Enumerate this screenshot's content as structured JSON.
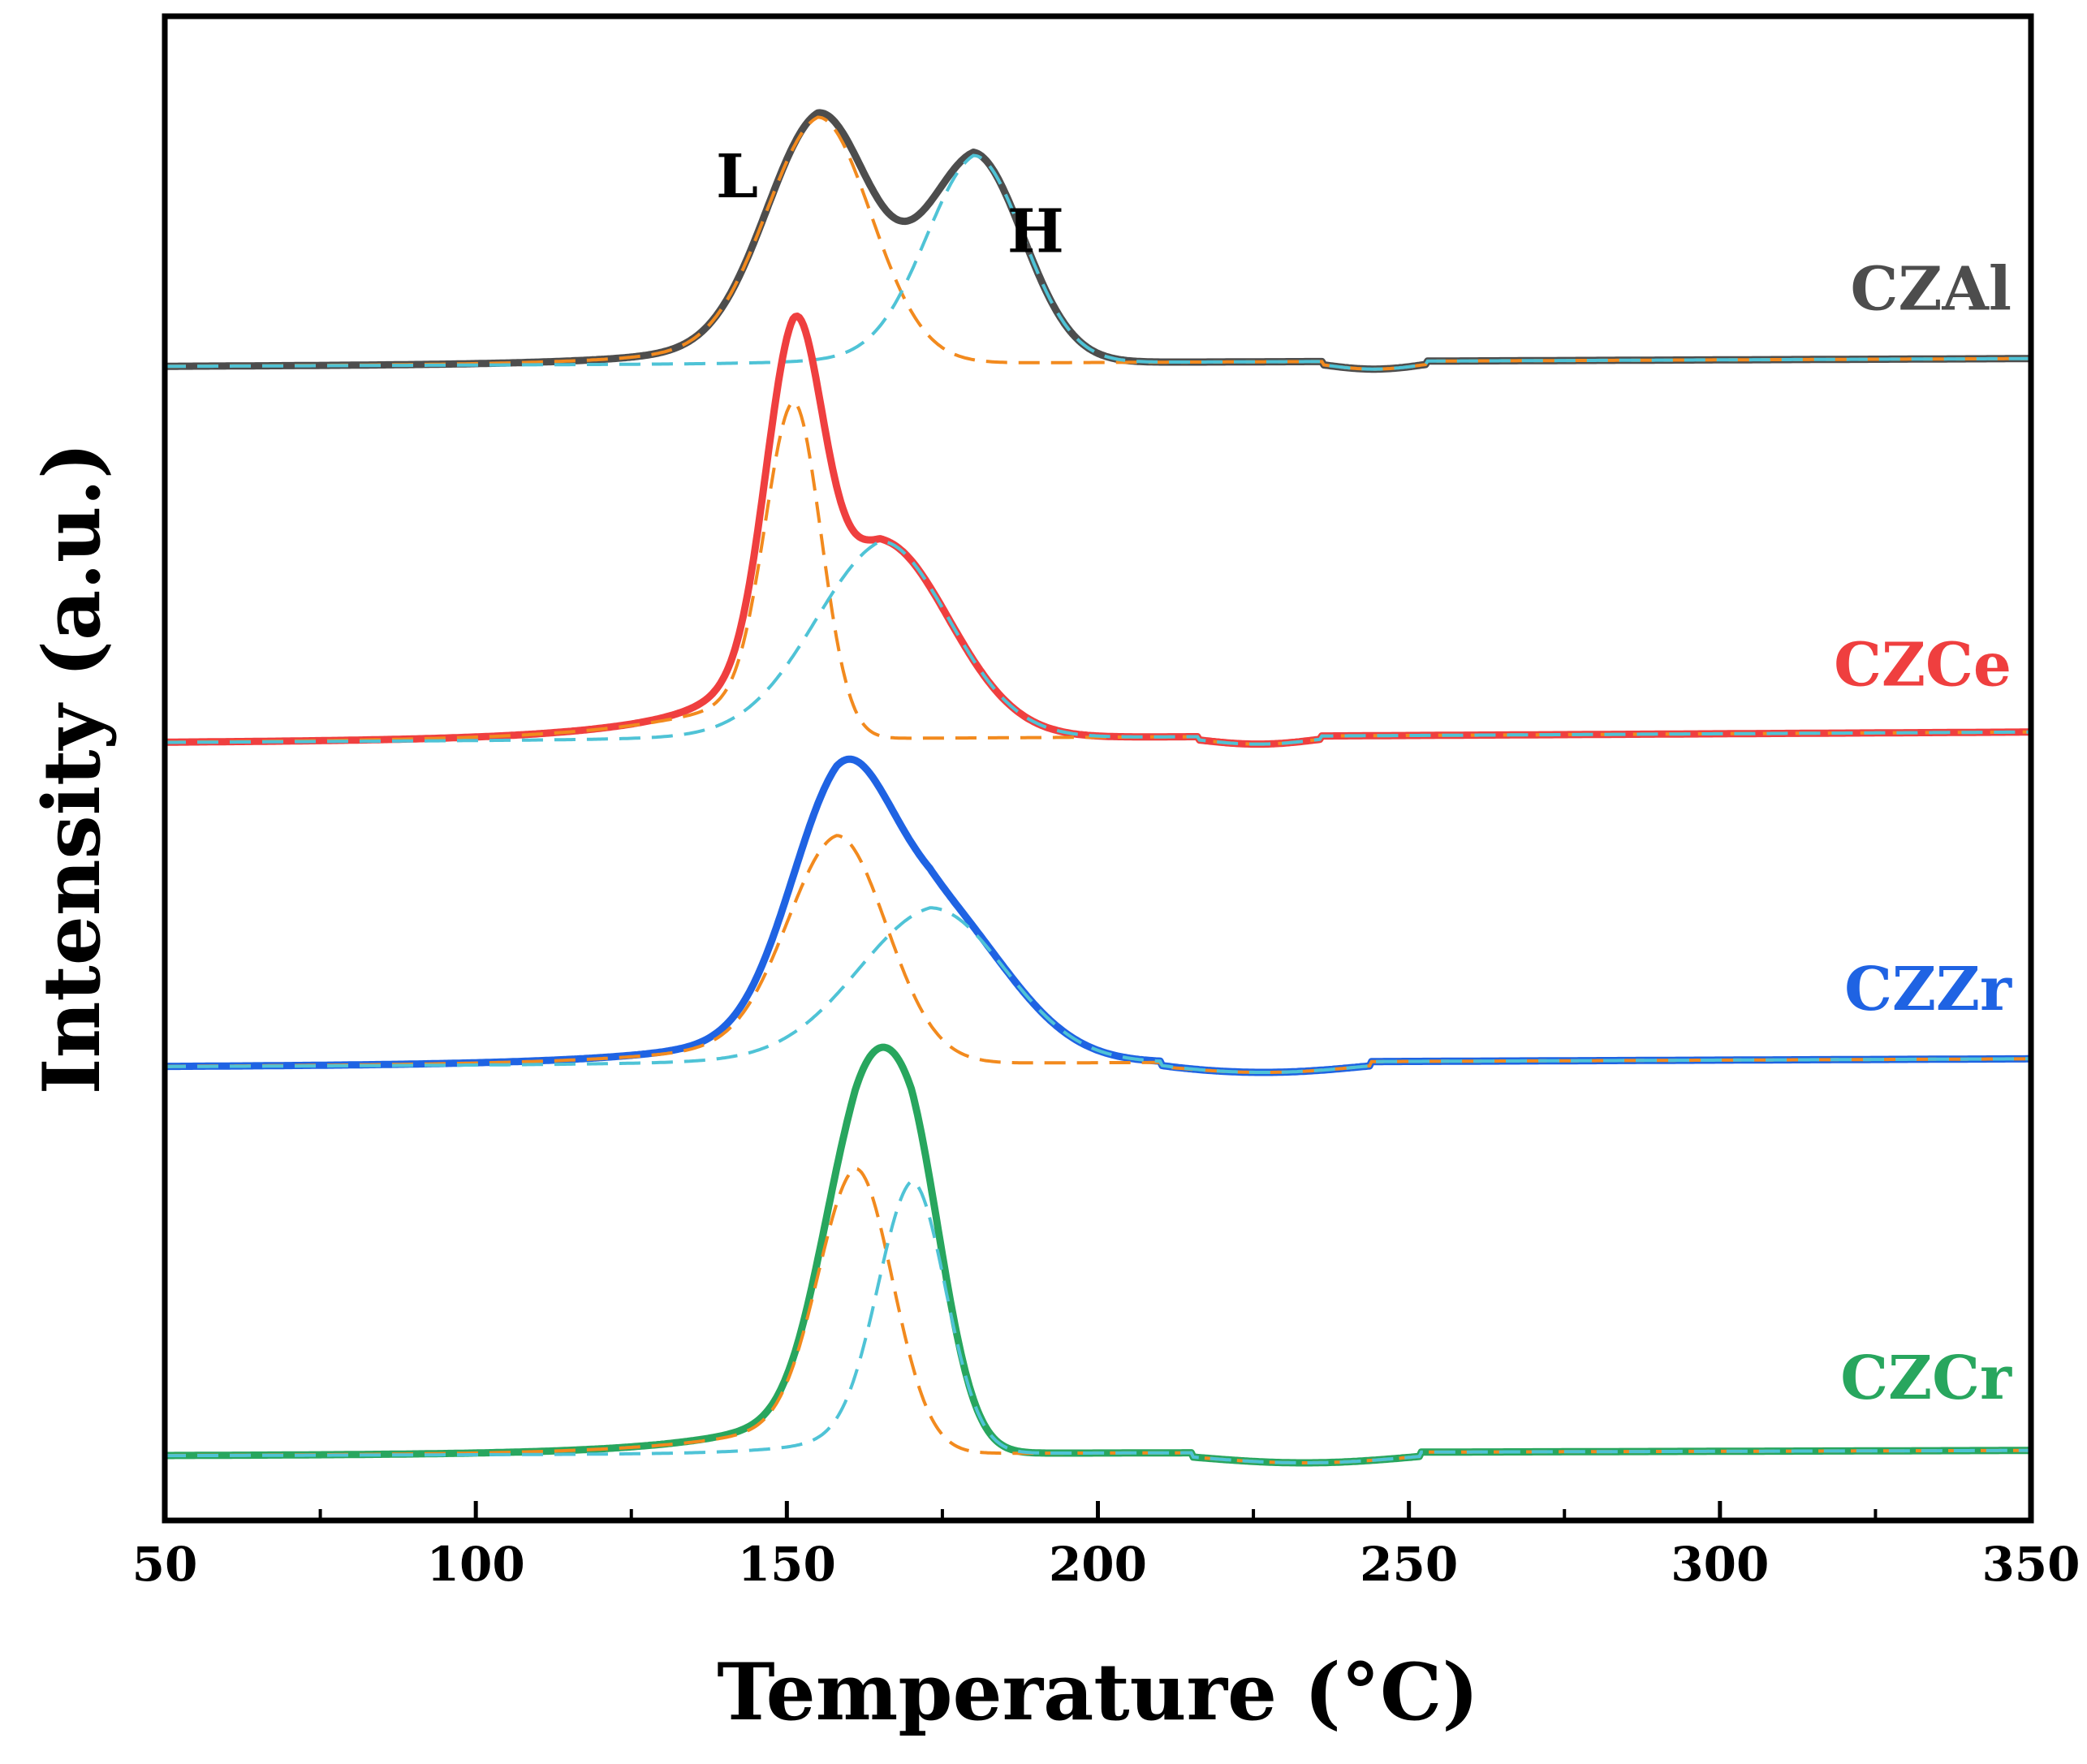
{
  "chart_data": {
    "type": "line",
    "title": "",
    "xlabel": "Temperature (°C)",
    "ylabel": "Intensity (a.u.)",
    "xlim": [
      50,
      350
    ],
    "ylim": [
      0,
      5.8
    ],
    "x_ticks": [
      50,
      100,
      150,
      200,
      250,
      300,
      350
    ],
    "x_tick_labels": [
      "50",
      "100",
      "150",
      "200",
      "250",
      "300",
      "350"
    ],
    "y_ticks_shown": false,
    "grid": false,
    "legend": "series labels placed at right, above each curve",
    "annotations": [
      {
        "text": "L",
        "series": "CZAl",
        "peak": "low-temperature"
      },
      {
        "text": "H",
        "series": "CZAl",
        "peak": "high-temperature"
      }
    ],
    "colors": {
      "fit_low": "#F28A1E",
      "fit_high": "#4FC3D6",
      "axis": "#000000"
    },
    "series": [
      {
        "name": "CZAl",
        "color": "#4D4D4D",
        "baseline": 4.45,
        "baseline_end": 4.48,
        "step": {
          "start": 236,
          "end": 253,
          "depth": -0.03
        },
        "peaks": [
          {
            "label": "L",
            "center": 155,
            "height": 0.95,
            "width": 8.5,
            "tail": 16
          },
          {
            "label": "H",
            "center": 180,
            "height": 0.8,
            "width": 8,
            "tail": 10
          }
        ]
      },
      {
        "name": "CZCe",
        "color": "#EF3F3F",
        "baseline": 3.0,
        "baseline_end": 3.04,
        "step": {
          "start": 216,
          "end": 236,
          "depth": -0.03
        },
        "peaks": [
          {
            "label": "L",
            "center": 151,
            "height": 1.3,
            "width": 4.5,
            "tail": 18
          },
          {
            "label": "H",
            "center": 165,
            "height": 0.76,
            "width": 11,
            "tail": 12
          }
        ]
      },
      {
        "name": "CZZr",
        "color": "#1F63E3",
        "baseline": 1.75,
        "baseline_end": 1.78,
        "step": {
          "start": 210,
          "end": 244,
          "depth": -0.04
        },
        "peaks": [
          {
            "label": "L",
            "center": 158,
            "height": 0.88,
            "width": 8,
            "tail": 20
          },
          {
            "label": "H",
            "center": 173,
            "height": 0.6,
            "width": 12,
            "tail": 16
          }
        ]
      },
      {
        "name": "CZCr",
        "color": "#28A65E",
        "baseline": 0.25,
        "baseline_end": 0.27,
        "step": {
          "start": 215,
          "end": 252,
          "depth": -0.04
        },
        "peaks": [
          {
            "label": "L",
            "center": 161,
            "height": 1.1,
            "width": 6,
            "tail": 18
          },
          {
            "label": "H",
            "center": 170,
            "height": 1.05,
            "width": 5.5,
            "tail": 10
          }
        ]
      }
    ]
  }
}
